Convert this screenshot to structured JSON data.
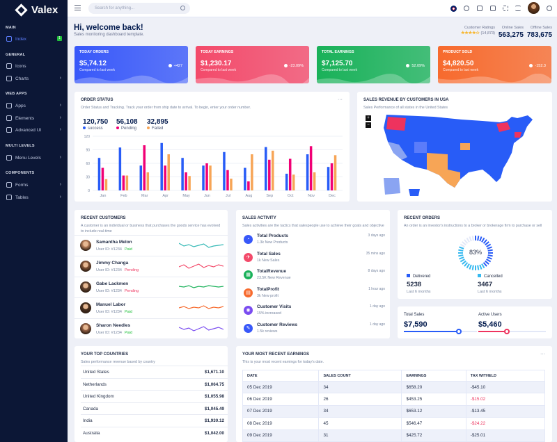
{
  "app": {
    "name": "Valex"
  },
  "sidebar": {
    "sections": [
      {
        "title": "MAIN",
        "items": [
          {
            "label": "Index",
            "badge": "1",
            "active": true
          }
        ]
      },
      {
        "title": "GENERAL",
        "items": [
          {
            "label": "Icons"
          },
          {
            "label": "Charts",
            "chevron": true
          }
        ]
      },
      {
        "title": "WEB APPS",
        "items": [
          {
            "label": "Apps",
            "chevron": true
          },
          {
            "label": "Elements",
            "chevron": true
          },
          {
            "label": "Advanced UI",
            "chevron": true
          }
        ]
      },
      {
        "title": "MULTI LEVELS",
        "items": [
          {
            "label": "Menu Levels",
            "chevron": true
          }
        ]
      },
      {
        "title": "COMPONENTS",
        "items": [
          {
            "label": "Forms",
            "chevron": true
          },
          {
            "label": "Tables",
            "chevron": true
          }
        ]
      }
    ]
  },
  "topbar": {
    "search_placeholder": "Search for anything..."
  },
  "header": {
    "title": "Hi, welcome back!",
    "subtitle": "Sales monitoring dashboard template.",
    "ratings_label": "Customer Ratings",
    "ratings_count": "(14,873)",
    "rating_stars": 4,
    "online_label": "Online Sales",
    "online_value": "563,275",
    "offline_label": "Offline Sales",
    "offline_value": "783,675"
  },
  "kpis": [
    {
      "title": "TODAY ORDERS",
      "value": "$5,74.12",
      "caption": "Compared to last week",
      "change": "+427",
      "color": "#3858f9"
    },
    {
      "title": "TODAY EARNINGS",
      "value": "$1,230.17",
      "caption": "Compared to last week",
      "change": "-23.09%",
      "color": "#f34a6a"
    },
    {
      "title": "TOTAL EARNINGS",
      "value": "$7,125.70",
      "caption": "Compared to last week",
      "change": "52.09%",
      "color": "#19b159"
    },
    {
      "title": "PRODUCT SOLD",
      "value": "$4,820.50",
      "caption": "Compared to last week",
      "change": "-152.3",
      "color": "#f76a2d"
    }
  ],
  "order_status": {
    "title": "ORDER STATUS",
    "subtitle": "Order Status and Tracking. Track your order from ship date to arrival. To begin, enter your order number.",
    "stats": [
      {
        "value": "120,750",
        "label": "success",
        "color": "#285cf7"
      },
      {
        "value": "56,108",
        "label": "Pending",
        "color": "#f10075"
      },
      {
        "value": "32,895",
        "label": "Failed",
        "color": "#f7a556"
      }
    ]
  },
  "chart_data": {
    "type": "bar",
    "categories": [
      "Jan",
      "Feb",
      "Mar",
      "Apr",
      "May",
      "Jun",
      "Jul",
      "Aug",
      "Sep",
      "Oct",
      "Nov",
      "Dec"
    ],
    "ylim": [
      0,
      120
    ],
    "yticks": [
      "120",
      "90",
      "60",
      "30",
      "0"
    ],
    "series": [
      {
        "name": "success",
        "color": "#285cf7",
        "values": [
          72,
          95,
          55,
          105,
          72,
          55,
          85,
          50,
          96,
          37,
          80,
          52
        ]
      },
      {
        "name": "Pending",
        "color": "#f10075",
        "values": [
          50,
          33,
          100,
          55,
          40,
          60,
          45,
          20,
          68,
          70,
          98,
          60
        ]
      },
      {
        "name": "Failed",
        "color": "#f7a556",
        "values": [
          25,
          33,
          40,
          80,
          32,
          55,
          26,
          80,
          88,
          35,
          40,
          78
        ]
      }
    ]
  },
  "map": {
    "title": "SALES REVENUE BY CUSTOMERS IN USA",
    "subtitle": "Sales Performance of all states in the United States"
  },
  "recent_customers": {
    "title": "RECENT CUSTOMERS",
    "subtitle": "A customer is an individual or business that purchases the goods service has evolved to include real-time",
    "rows": [
      {
        "name": "Samantha Melon",
        "id": "User ID: #1234",
        "status": "Paid",
        "status_color": "#22c03c",
        "line_color": "#36b9b6",
        "points": [
          12,
          8,
          10,
          7,
          9,
          11,
          6,
          8,
          9,
          10
        ]
      },
      {
        "name": "Jimmy Changa",
        "id": "User ID: #1234",
        "status": "Pending",
        "status_color": "#ee335e",
        "line_color": "#f34a6a",
        "points": [
          8,
          11,
          6,
          9,
          12,
          7,
          10,
          8,
          11,
          9
        ]
      },
      {
        "name": "Gabe Lackmen",
        "id": "User ID: #1234",
        "status": "Pending",
        "status_color": "#ee335e",
        "line_color": "#19b159",
        "points": [
          10,
          9,
          11,
          8,
          10,
          9,
          11,
          10,
          9,
          10
        ]
      },
      {
        "name": "Manuel Labor",
        "id": "User ID: #1234",
        "status": "Paid",
        "status_color": "#22c03c",
        "line_color": "#f76a2d",
        "points": [
          9,
          11,
          8,
          10,
          9,
          12,
          8,
          10,
          9,
          11
        ]
      },
      {
        "name": "Sharon Needles",
        "id": "User ID: #1234",
        "status": "Paid",
        "status_color": "#22c03c",
        "line_color": "#7a4cf0",
        "points": [
          11,
          8,
          10,
          6,
          9,
          12,
          7,
          9,
          11,
          8
        ]
      }
    ]
  },
  "sales_activity": {
    "title": "SALES ACTIVITY",
    "subtitle": "Sales activities are the tactics that salespeople use to achieve their goals and objective",
    "items": [
      {
        "title": "Total Products",
        "sub": "1.3k New Products",
        "time": "3 days ago",
        "color": "#3858f9",
        "icon": "products-icon",
        "glyph": "◔"
      },
      {
        "title": "Total Sales",
        "sub": "1k New Sales",
        "time": "35 mins ago",
        "color": "#f34a6a",
        "icon": "sales-icon",
        "glyph": "✈"
      },
      {
        "title": "TotalRevenue",
        "sub": "23.5K New Revenue",
        "time": "8 days ago",
        "color": "#19b159",
        "icon": "revenue-icon",
        "glyph": "▦"
      },
      {
        "title": "TotalProfit",
        "sub": "3k New profit",
        "time": "1 hour ago",
        "color": "#f76a2d",
        "icon": "profit-icon",
        "glyph": "▤"
      },
      {
        "title": "Customer Visits",
        "sub": "15% increased",
        "time": "1 day ago",
        "color": "#7a4cf0",
        "icon": "visits-icon",
        "glyph": "◉"
      },
      {
        "title": "Customer Reviews",
        "sub": "1.5k reviews",
        "time": "1 day ago",
        "color": "#3858f9",
        "icon": "reviews-icon",
        "glyph": "✎"
      }
    ]
  },
  "recent_orders": {
    "title": "RECENT ORDERS",
    "subtitle": "An order is an investor's instructions to a broker or brokerage firm to purchase or sell",
    "percent": 83,
    "percent_label": "83%",
    "delivered_label": "Delivered",
    "delivered_value": "5238",
    "delivered_sub": "Last 6 months",
    "cancelled_label": "Cancelled",
    "cancelled_value": "3467",
    "cancelled_sub": "Last 6 months"
  },
  "sales_sliders": {
    "total_label": "Total Sales",
    "total_value": "$7,590",
    "total_fraction": 0.75,
    "active_label": "Active Users",
    "active_value": "$5,460",
    "active_fraction": 0.42
  },
  "top_countries": {
    "title": "YOUR TOP COUNTRIES",
    "subtitle": "Sales performance revenue based by country",
    "rows": [
      {
        "country": "United States",
        "amount": "$1,671.10"
      },
      {
        "country": "Netherlands",
        "amount": "$1,064.75"
      },
      {
        "country": "United Kingdom",
        "amount": "$1,055.98"
      },
      {
        "country": "Canada",
        "amount": "$1,045.49"
      },
      {
        "country": "India",
        "amount": "$1,930.12"
      },
      {
        "country": "Australia",
        "amount": "$1,042.00"
      }
    ]
  },
  "earnings": {
    "title": "YOUR MOST RECENT EARNINGS",
    "subtitle": "This is your most recent earnings for today's date.",
    "columns": [
      "DATE",
      "SALES COUNT",
      "EARNINGS",
      "TAX WITHELD"
    ],
    "rows": [
      {
        "date": "05 Dec 2019",
        "count": "34",
        "earnings": "$658.20",
        "tax": "-$45.10",
        "neg": false
      },
      {
        "date": "06 Dec 2019",
        "count": "26",
        "earnings": "$453.25",
        "tax": "-$15.02",
        "neg": true
      },
      {
        "date": "07 Dec 2019",
        "count": "34",
        "earnings": "$653.12",
        "tax": "-$13.45",
        "neg": false
      },
      {
        "date": "08 Dec 2019",
        "count": "45",
        "earnings": "$546.47",
        "tax": "-$24.22",
        "neg": true
      },
      {
        "date": "09 Dec 2019",
        "count": "31",
        "earnings": "$425.72",
        "tax": "-$25.01",
        "neg": false
      }
    ]
  }
}
